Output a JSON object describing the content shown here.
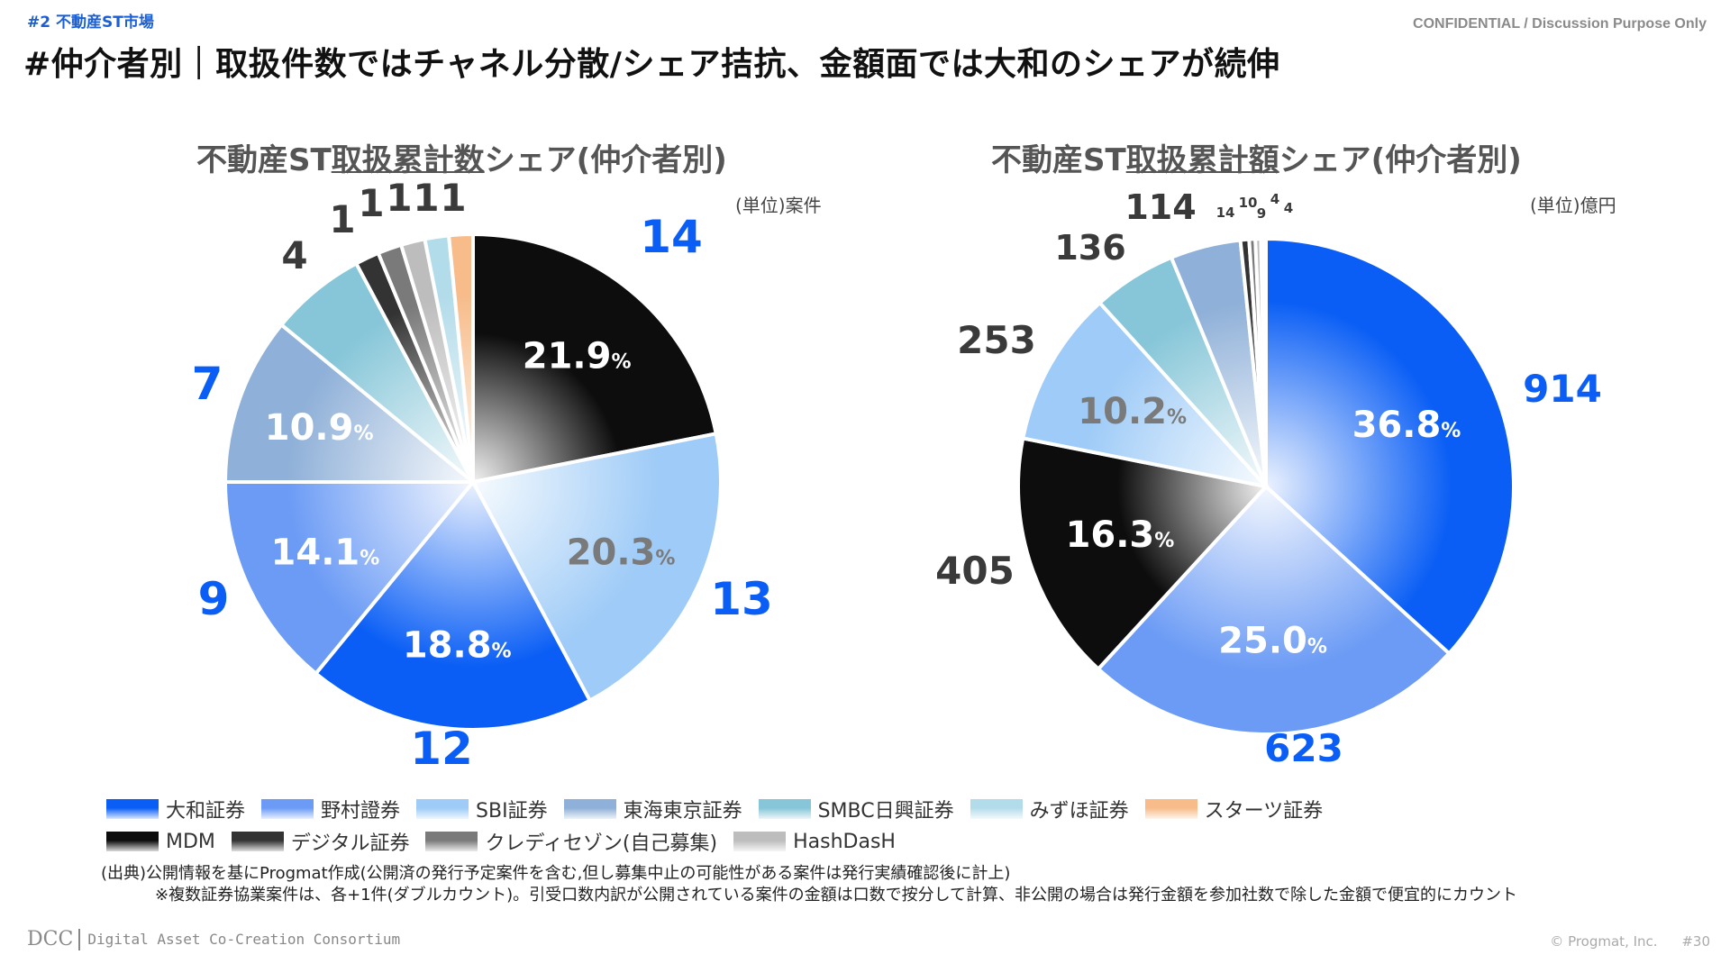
{
  "header": {
    "section_tag": "#2 不動産ST市場",
    "confidential": "CONFIDENTIAL / Discussion Purpose Only",
    "title": "#仲介者別｜取扱件数ではチャネル分散/シェア拮抗、金額面では大和のシェアが続伸"
  },
  "brokers": {
    "daiwa": {
      "name": "大和証券",
      "color": "#0a5ef5"
    },
    "nomura": {
      "name": "野村證券",
      "color": "#6b9bf5"
    },
    "sbi": {
      "name": "SBI証券",
      "color": "#9ecbf7"
    },
    "tokai": {
      "name": "東海東京証券",
      "color": "#8fb0d8"
    },
    "smbc": {
      "name": "SMBC日興証券",
      "color": "#86c6d8"
    },
    "mizuho": {
      "name": "みずほ証券",
      "color": "#b3dcea"
    },
    "stars": {
      "name": "スターツ証券",
      "color": "#f7bc8a"
    },
    "mdm": {
      "name": "MDM",
      "color": "#0d0d0d"
    },
    "digital": {
      "name": "デジタル証券",
      "color": "#333333"
    },
    "credit": {
      "name": "クレディセゾン(自己募集)",
      "color": "#7a7a7a"
    },
    "hashdash": {
      "name": "HashDasH",
      "color": "#bdbdbd"
    }
  },
  "legend": {
    "row1": [
      "daiwa",
      "nomura",
      "sbi",
      "tokai",
      "smbc",
      "mizuho",
      "stars"
    ],
    "row2": [
      "mdm",
      "digital",
      "credit",
      "hashdash"
    ]
  },
  "chart_data": [
    {
      "type": "pie",
      "title_pre": "不動産ST",
      "title_underlined": "取扱累計数",
      "title_post": "シェア(仲介者別)",
      "unit": "(単位)案件",
      "start": "12 o'clock, clockwise",
      "slices": [
        {
          "key": "mdm",
          "value": 14,
          "pct": "21.9"
        },
        {
          "key": "sbi",
          "value": 13,
          "pct": "20.3"
        },
        {
          "key": "daiwa",
          "value": 12,
          "pct": "18.8"
        },
        {
          "key": "nomura",
          "value": 9,
          "pct": "14.1"
        },
        {
          "key": "tokai",
          "value": 7,
          "pct": "10.9"
        },
        {
          "key": "smbc",
          "value": 4,
          "pct": ""
        },
        {
          "key": "digital",
          "value": 1,
          "pct": ""
        },
        {
          "key": "credit",
          "value": 1,
          "pct": ""
        },
        {
          "key": "hashdash",
          "value": 1,
          "pct": ""
        },
        {
          "key": "mizuho",
          "value": 1,
          "pct": ""
        },
        {
          "key": "stars",
          "value": 1,
          "pct": ""
        }
      ]
    },
    {
      "type": "pie",
      "title_pre": "不動産ST",
      "title_underlined": "取扱累計額",
      "title_post": "シェア(仲介者別)",
      "unit": "(単位)億円",
      "start": "12 o'clock, clockwise",
      "slices": [
        {
          "key": "daiwa",
          "value": 914,
          "pct": "36.8"
        },
        {
          "key": "nomura",
          "value": 623,
          "pct": "25.0"
        },
        {
          "key": "mdm",
          "value": 405,
          "pct": "16.3"
        },
        {
          "key": "sbi",
          "value": 253,
          "pct": "10.2"
        },
        {
          "key": "smbc",
          "value": 136,
          "pct": ""
        },
        {
          "key": "tokai",
          "value": 114,
          "pct": ""
        },
        {
          "key": "digital",
          "value": 14,
          "pct": ""
        },
        {
          "key": "credit",
          "value": 10,
          "pct": ""
        },
        {
          "key": "hashdash",
          "value": 9,
          "pct": ""
        },
        {
          "key": "mizuho",
          "value": 4,
          "pct": ""
        },
        {
          "key": "stars",
          "value": 4,
          "pct": ""
        }
      ]
    }
  ],
  "source": {
    "line1": "(出典)公開情報を基にProgmat作成(公開済の発行予定案件を含む,但し募集中止の可能性がある案件は発行実績確認後に計上)",
    "line2": "※複数証券協業案件は、各+1件(ダブルカウント)。引受口数内訳が公開されている案件の金額は口数で按分して計算、非公開の場合は発行金額を参加社数で除した金額で便宜的にカウント"
  },
  "footer": {
    "logo": "DCC",
    "org": "Digital Asset Co-Creation Consortium",
    "copyright": "© Progmat, Inc.",
    "page": "#30"
  },
  "colors": {
    "accent_blue": "#0a5ef5",
    "dark_label": "#3a3a3a"
  }
}
